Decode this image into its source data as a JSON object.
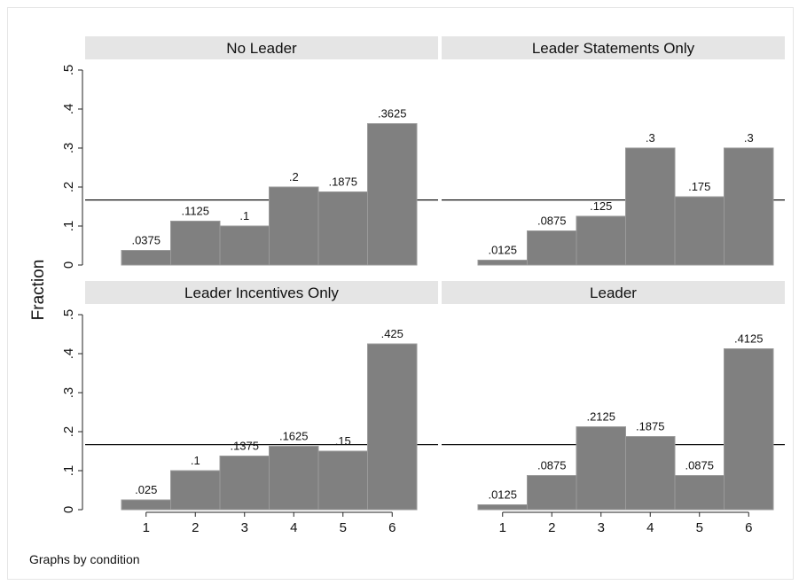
{
  "chart_data": {
    "type": "bar",
    "ylabel": "Fraction",
    "note": "Graphs by condition",
    "categories": [
      "1",
      "2",
      "3",
      "4",
      "5",
      "6"
    ],
    "y_ticks": [
      "0",
      ".1",
      ".2",
      ".3",
      ".4",
      ".5"
    ],
    "ylim": [
      0,
      0.5
    ],
    "reference_line": 0.1667,
    "colors": {
      "bar": "#808080",
      "bar_edge": "#9a9a9a",
      "strip": "#e5e5e5"
    },
    "panels": [
      {
        "title": "No Leader",
        "values": [
          0.0375,
          0.1125,
          0.1,
          0.2,
          0.1875,
          0.3625
        ],
        "labels": [
          ".0375",
          ".1125",
          ".1",
          ".2",
          ".1875",
          ".3625"
        ]
      },
      {
        "title": "Leader Statements Only",
        "values": [
          0.0125,
          0.0875,
          0.125,
          0.3,
          0.175,
          0.3
        ],
        "labels": [
          ".0125",
          ".0875",
          ".125",
          ".3",
          ".175",
          ".3"
        ]
      },
      {
        "title": "Leader Incentives Only",
        "values": [
          0.025,
          0.1,
          0.1375,
          0.1625,
          0.15,
          0.425
        ],
        "labels": [
          ".025",
          ".1",
          ".1375",
          ".1625",
          ".15",
          ".425"
        ]
      },
      {
        "title": "Leader",
        "values": [
          0.0125,
          0.0875,
          0.2125,
          0.1875,
          0.0875,
          0.4125
        ],
        "labels": [
          ".0125",
          ".0875",
          ".2125",
          ".1875",
          ".0875",
          ".4125"
        ]
      }
    ]
  }
}
